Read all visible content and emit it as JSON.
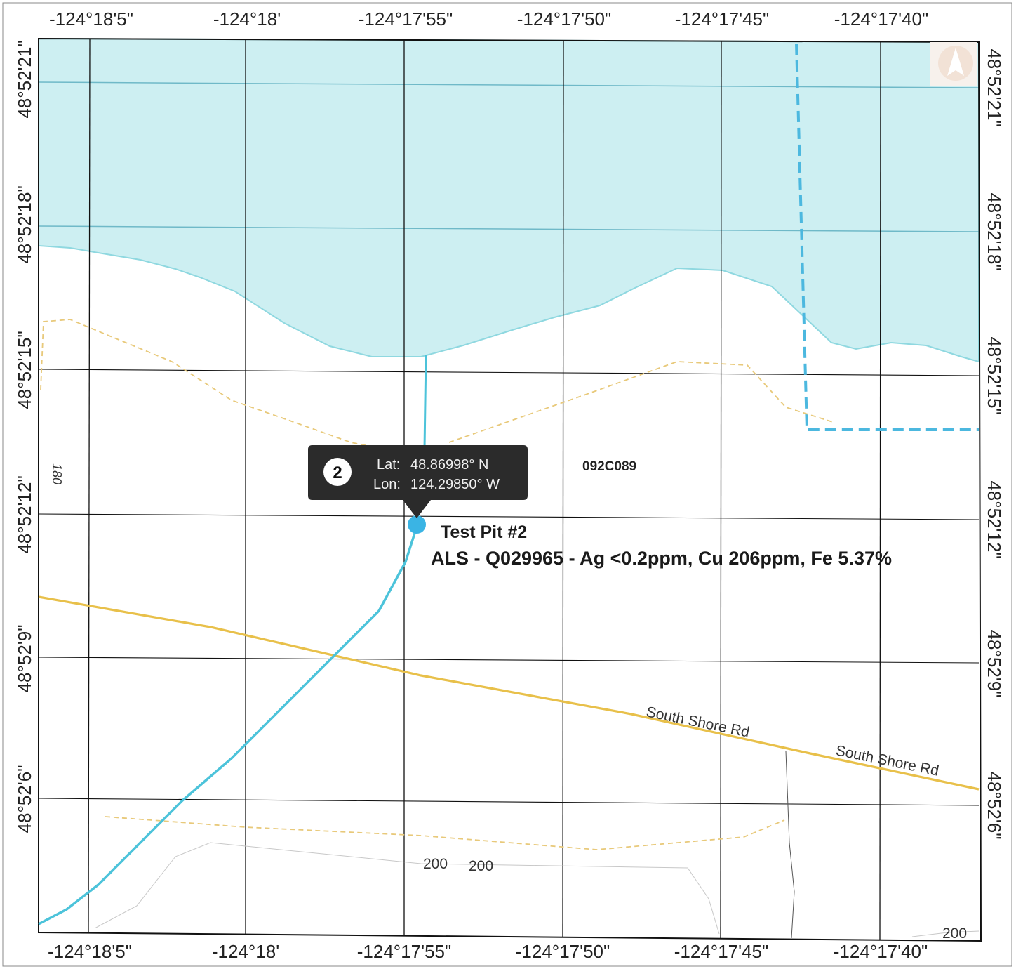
{
  "axes": {
    "top_lon_labels": [
      "-124°18'5\"",
      "-124°18'",
      "-124°17'55\"",
      "-124°17'50\"",
      "-124°17'45\"",
      "-124°17'40\""
    ],
    "bottom_lon_labels": [
      "-124°18'5\"",
      "-124°18'",
      "-124°17'55\"",
      "-124°17'50\"",
      "-124°17'45\"",
      "-124°17'40\""
    ],
    "left_lat_labels": [
      "48°52'21\"",
      "48°52'18\"",
      "48°52'15\"",
      "48°52'12\"",
      "48°52'9\"",
      "48°52'6\""
    ],
    "right_lat_labels": [
      "48°52'21\"",
      "48°52'18\"",
      "48°52'15\"",
      "48°52'12\"",
      "48°52'9\"",
      "48°52'6\""
    ]
  },
  "marker": {
    "number": "2",
    "lat_label": "Lat:",
    "lat_value": "48.86998° N",
    "lon_label": "Lon:",
    "lon_value": "124.29850° W",
    "title": "Test Pit #2",
    "assay": "ALS - Q029965 - Ag <0.2ppm, Cu 206ppm, Fe 5.37%"
  },
  "map_labels": {
    "claim_id": "092C089",
    "contour_180": "180",
    "contour_200_a": "200",
    "contour_200_b": "200",
    "contour_200_c": "200",
    "road_1": "South Shore Rd",
    "road_2": "South Shore Rd"
  },
  "colors": {
    "water": "#cdeff2",
    "water_edge": "#8fd8e0",
    "stream": "#4cc3da",
    "boundary": "#4cb8df",
    "road": "#e8c04a",
    "trail": "#e8c97a",
    "grid": "#111111",
    "callout_bg": "#2b2b2b",
    "marker": "#3ab4e4"
  }
}
